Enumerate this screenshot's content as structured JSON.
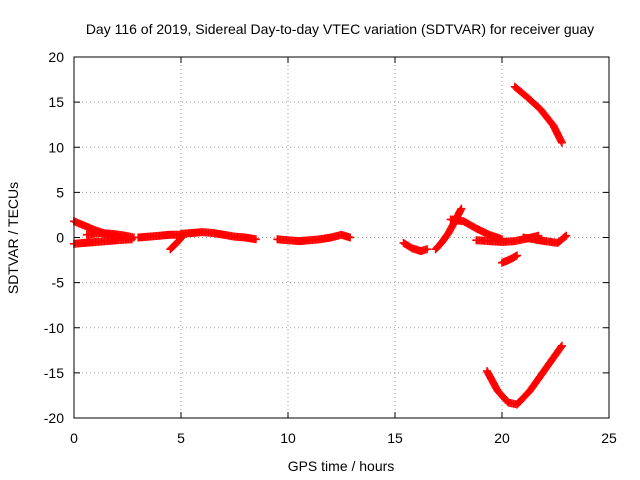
{
  "chart_data": {
    "type": "scatter",
    "title": "Day 116 of 2019, Sidereal Day-to-day VTEC variation (SDTVAR) for receiver guay",
    "xlabel": "GPS time / hours",
    "ylabel": "SDTVAR / TECUs",
    "xlim": [
      0,
      25
    ],
    "ylim": [
      -20,
      20
    ],
    "x_ticks": [
      "0",
      "5",
      "10",
      "15",
      "20",
      "25"
    ],
    "y_ticks": [
      "-20",
      "-15",
      "-10",
      "-5",
      "0",
      "5",
      "10",
      "15",
      "20"
    ],
    "grid": true,
    "marker": "+",
    "color": "#ff0000",
    "series": [
      {
        "name": "track-1",
        "x": [
          0.0,
          0.5,
          1.0,
          1.5,
          2.0,
          2.5
        ],
        "y": [
          1.8,
          1.3,
          0.8,
          0.4,
          0.1,
          0.0
        ]
      },
      {
        "name": "track-2",
        "x": [
          0.0,
          0.5,
          1.0,
          1.5,
          2.0,
          2.7
        ],
        "y": [
          -0.7,
          -0.6,
          -0.5,
          -0.4,
          -0.3,
          -0.2
        ]
      },
      {
        "name": "track-3",
        "x": [
          0.6,
          1.2,
          1.8,
          2.4,
          2.8
        ],
        "y": [
          0.3,
          0.5,
          0.4,
          0.2,
          0.0
        ]
      },
      {
        "name": "track-4",
        "x": [
          3.0,
          3.5,
          4.0,
          4.5,
          5.0
        ],
        "y": [
          0.0,
          0.1,
          0.2,
          0.3,
          0.3
        ]
      },
      {
        "name": "track-5",
        "x": [
          4.5,
          4.8,
          5.1
        ],
        "y": [
          -1.3,
          -0.6,
          0.2
        ]
      },
      {
        "name": "track-6",
        "x": [
          5.0,
          5.5,
          6.0,
          6.5,
          7.0,
          7.5,
          8.0,
          8.5
        ],
        "y": [
          0.4,
          0.5,
          0.6,
          0.5,
          0.3,
          0.1,
          0.0,
          -0.2
        ]
      },
      {
        "name": "track-7",
        "x": [
          9.5,
          10.0,
          10.5,
          11.0,
          11.5,
          12.0,
          12.5,
          12.9
        ],
        "y": [
          -0.2,
          -0.3,
          -0.4,
          -0.3,
          -0.2,
          0.0,
          0.3,
          0.0
        ]
      },
      {
        "name": "track-8",
        "x": [
          15.4,
          15.8,
          16.2,
          16.5
        ],
        "y": [
          -0.6,
          -1.2,
          -1.5,
          -1.3
        ]
      },
      {
        "name": "track-9",
        "x": [
          16.9,
          17.2,
          17.5,
          17.8,
          18.1
        ],
        "y": [
          -1.3,
          -0.5,
          0.5,
          1.8,
          3.2
        ]
      },
      {
        "name": "track-10",
        "x": [
          17.6,
          18.2,
          18.8,
          19.4,
          20.0
        ],
        "y": [
          2.0,
          1.8,
          1.0,
          0.3,
          -0.2
        ]
      },
      {
        "name": "track-11",
        "x": [
          18.8,
          19.4,
          20.0,
          20.6,
          21.2,
          21.7
        ],
        "y": [
          -0.3,
          -0.4,
          -0.5,
          -0.4,
          -0.1,
          0.2
        ]
      },
      {
        "name": "track-12",
        "x": [
          20.0,
          20.4,
          20.7
        ],
        "y": [
          -2.8,
          -2.4,
          -2.0
        ]
      },
      {
        "name": "track-13",
        "x": [
          21.0,
          21.5,
          22.0,
          22.6,
          23.0
        ],
        "y": [
          0.0,
          -0.2,
          -0.4,
          -0.6,
          0.2
        ]
      },
      {
        "name": "track-14",
        "x": [
          20.6,
          21.2,
          21.8,
          22.4,
          22.8
        ],
        "y": [
          16.7,
          15.5,
          14.2,
          12.4,
          10.5
        ]
      },
      {
        "name": "track-15",
        "x": [
          19.3,
          19.8,
          20.3,
          20.7,
          21.3,
          21.9,
          22.5,
          22.8
        ],
        "y": [
          -14.8,
          -17.0,
          -18.3,
          -18.5,
          -17.0,
          -15.0,
          -13.0,
          -12.0
        ]
      }
    ]
  }
}
